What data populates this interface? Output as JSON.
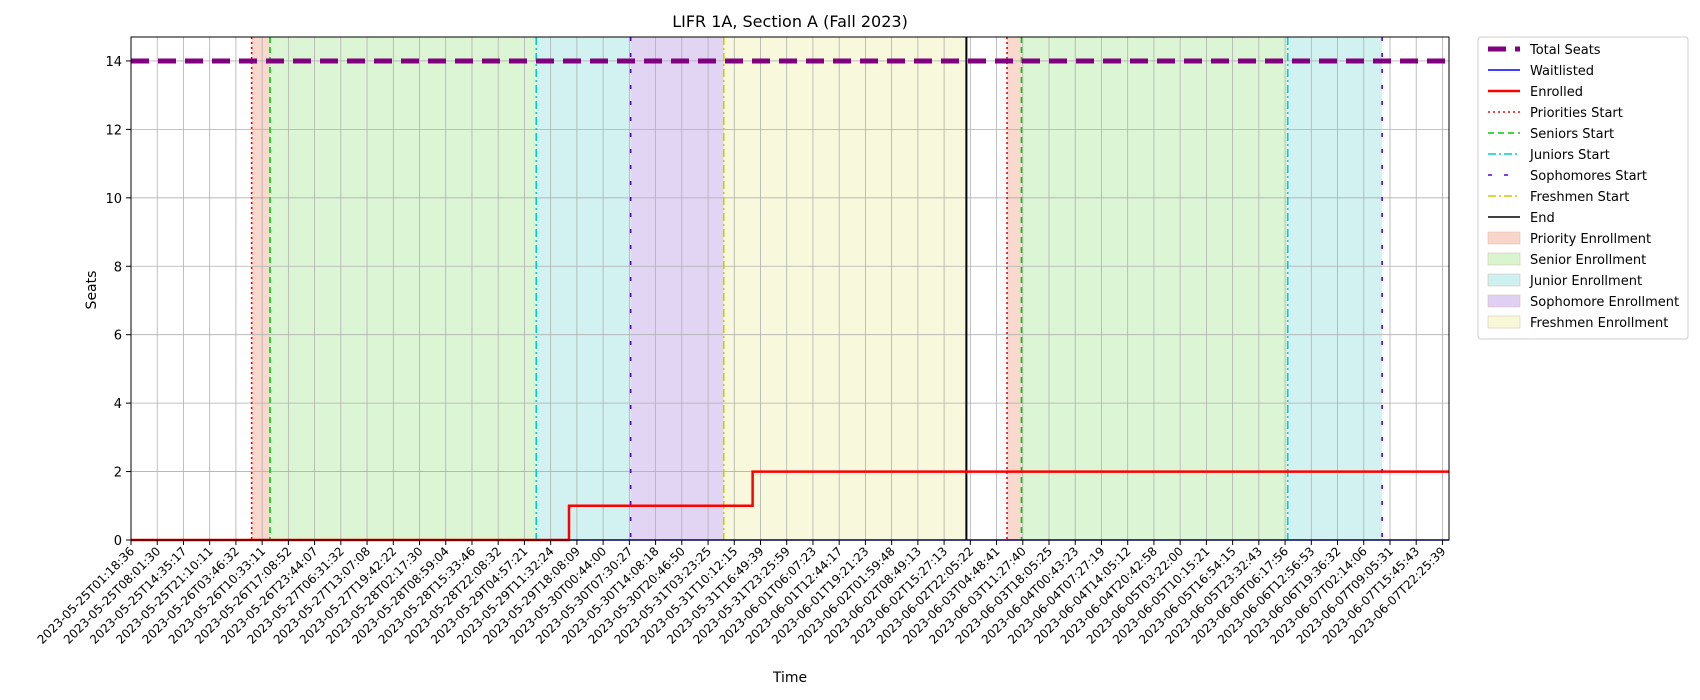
{
  "chart_data": {
    "type": "line",
    "title": "LIFR 1A, Section A (Fall 2023)",
    "xlabel": "Time",
    "ylabel": "Seats",
    "ylim": [
      0,
      14.7
    ],
    "yticks": [
      0,
      2,
      4,
      6,
      8,
      10,
      12,
      14
    ],
    "grid": true,
    "legend_position": "outside-right",
    "x_tick_labels": [
      "2023-05-25T01:18:36",
      "2023-05-25T08:01:30",
      "2023-05-25T14:35:17",
      "2023-05-25T21:10:11",
      "2023-05-26T03:46:32",
      "2023-05-26T10:33:11",
      "2023-05-26T17:08:52",
      "2023-05-26T23:44:07",
      "2023-05-27T06:31:32",
      "2023-05-27T13:07:08",
      "2023-05-27T19:42:22",
      "2023-05-28T02:17:30",
      "2023-05-28T08:59:04",
      "2023-05-28T15:33:46",
      "2023-05-28T22:08:32",
      "2023-05-29T04:57:21",
      "2023-05-29T11:32:24",
      "2023-05-29T18:08:09",
      "2023-05-30T00:44:00",
      "2023-05-30T07:30:27",
      "2023-05-30T14:08:18",
      "2023-05-30T20:46:50",
      "2023-05-31T03:23:25",
      "2023-05-31T10:12:15",
      "2023-05-31T16:49:39",
      "2023-05-31T23:25:59",
      "2023-06-01T06:07:23",
      "2023-06-01T12:44:17",
      "2023-06-01T19:21:23",
      "2023-06-02T01:59:48",
      "2023-06-02T08:49:13",
      "2023-06-02T15:27:13",
      "2023-06-02T22:05:22",
      "2023-06-03T04:48:41",
      "2023-06-03T11:27:40",
      "2023-06-03T18:05:25",
      "2023-06-04T00:43:23",
      "2023-06-04T07:27:19",
      "2023-06-04T14:05:12",
      "2023-06-04T20:42:58",
      "2023-06-05T03:22:00",
      "2023-06-05T10:15:21",
      "2023-06-05T16:54:15",
      "2023-06-05T23:32:43",
      "2023-06-06T06:17:56",
      "2023-06-06T12:56:53",
      "2023-06-06T19:36:32",
      "2023-06-07T02:14:06",
      "2023-06-07T09:05:31",
      "2023-06-07T15:45:43",
      "2023-06-07T22:25:39"
    ],
    "x_range_ticks": [
      0,
      50.25
    ],
    "series": [
      {
        "name": "Total Seats",
        "color": "#800080",
        "style": "dashed-thick",
        "points": [
          [
            0,
            14
          ],
          [
            50.25,
            14
          ]
        ]
      },
      {
        "name": "Waitlisted",
        "color": "#0000ff",
        "style": "solid",
        "points": [
          [
            0,
            0
          ],
          [
            50.25,
            0
          ]
        ]
      },
      {
        "name": "Enrolled",
        "color": "#ff0000",
        "style": "solid-thick",
        "points": [
          [
            0,
            0
          ],
          [
            16.7,
            0
          ],
          [
            16.7,
            1
          ],
          [
            23.7,
            1
          ],
          [
            23.7,
            2
          ],
          [
            50.25,
            2
          ]
        ]
      }
    ],
    "vertical_lines": [
      {
        "name": "Priorities Start",
        "color": "#ff0000",
        "style": "dotted",
        "x": 4.6
      },
      {
        "name": "Seniors Start",
        "color": "#00cc00",
        "style": "dashed",
        "x": 5.3
      },
      {
        "name": "Juniors Start",
        "color": "#00cccc",
        "style": "dashdot",
        "x": 15.45
      },
      {
        "name": "Sophomores Start",
        "color": "#5500cc",
        "style": "loosedash",
        "x": 19.05
      },
      {
        "name": "Freshmen Start",
        "color": "#cccc00",
        "style": "dashdot",
        "x": 22.6
      },
      {
        "name": "End",
        "color": "#000000",
        "style": "solid",
        "x": 31.85
      },
      {
        "name": "",
        "color": "#ff0000",
        "style": "dotted",
        "x": 33.4
      },
      {
        "name": "",
        "color": "#00cc00",
        "style": "dashed",
        "x": 33.95
      },
      {
        "name": "",
        "color": "#00cccc",
        "style": "dashdot",
        "x": 44.1
      },
      {
        "name": "",
        "color": "#5500cc",
        "style": "loosedash",
        "x": 47.7
      }
    ],
    "regions": [
      {
        "name": "Priority Enrollment",
        "color": "#f8d5c8",
        "x0": 4.6,
        "x1": 5.3
      },
      {
        "name": "Senior Enrollment",
        "color": "#d8f5d0",
        "x0": 5.3,
        "x1": 15.45
      },
      {
        "name": "Junior Enrollment",
        "color": "#cdf0f0",
        "x0": 15.45,
        "x1": 19.05
      },
      {
        "name": "Sophomore Enrollment",
        "color": "#dfd0f3",
        "x0": 19.05,
        "x1": 22.6
      },
      {
        "name": "Freshmen Enrollment",
        "color": "#f7f8d8",
        "x0": 22.6,
        "x1": 31.85
      },
      {
        "name": "",
        "color": "#f8d5c8",
        "x0": 33.4,
        "x1": 33.95
      },
      {
        "name": "",
        "color": "#d8f5d0",
        "x0": 33.95,
        "x1": 44.1
      },
      {
        "name": "",
        "color": "#cdf0f0",
        "x0": 44.1,
        "x1": 47.7
      }
    ],
    "legend": [
      {
        "label": "Total Seats",
        "kind": "line",
        "color": "#800080",
        "style": "dashed-thick"
      },
      {
        "label": "Waitlisted",
        "kind": "line",
        "color": "#0000ff",
        "style": "solid"
      },
      {
        "label": "Enrolled",
        "kind": "line",
        "color": "#ff0000",
        "style": "solid-thick"
      },
      {
        "label": "Priorities Start",
        "kind": "line",
        "color": "#ff0000",
        "style": "dotted"
      },
      {
        "label": "Seniors Start",
        "kind": "line",
        "color": "#00cc00",
        "style": "dashed"
      },
      {
        "label": "Juniors Start",
        "kind": "line",
        "color": "#00cccc",
        "style": "dashdot"
      },
      {
        "label": "Sophomores Start",
        "kind": "line",
        "color": "#5500cc",
        "style": "loosedash"
      },
      {
        "label": "Freshmen Start",
        "kind": "line",
        "color": "#cccc00",
        "style": "dashdot"
      },
      {
        "label": "End",
        "kind": "line",
        "color": "#000000",
        "style": "solid"
      },
      {
        "label": "Priority Enrollment",
        "kind": "patch",
        "color": "#f8d5c8"
      },
      {
        "label": "Senior Enrollment",
        "kind": "patch",
        "color": "#d8f5d0"
      },
      {
        "label": "Junior Enrollment",
        "kind": "patch",
        "color": "#cdf0f0"
      },
      {
        "label": "Sophomore Enrollment",
        "kind": "patch",
        "color": "#dfd0f3"
      },
      {
        "label": "Freshmen Enrollment",
        "kind": "patch",
        "color": "#f7f8d8"
      }
    ]
  }
}
